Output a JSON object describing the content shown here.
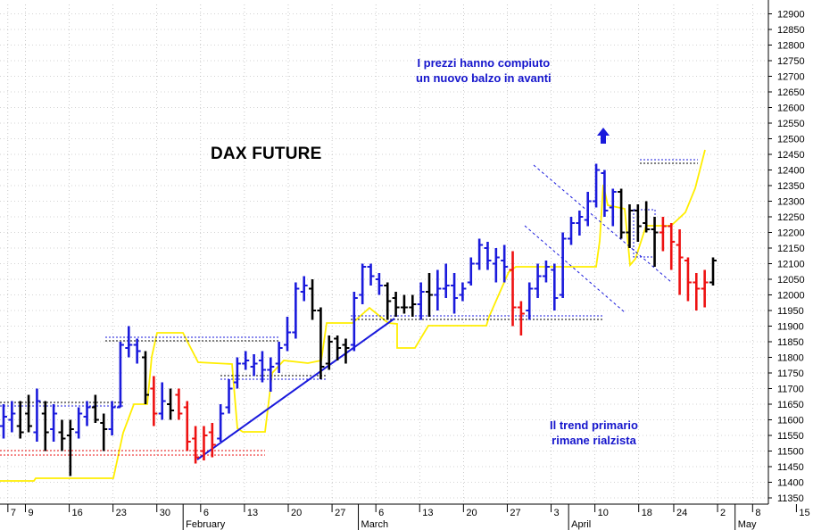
{
  "chart_data": {
    "type": "ohlc",
    "title": "DAX FUTURE",
    "annotations": [
      {
        "id": "top",
        "lines": [
          "I prezzi hanno compiuto",
          "un nuovo balzo in avanti"
        ]
      },
      {
        "id": "bottom",
        "lines": [
          "Il trend primario",
          "rimane rialzista"
        ]
      }
    ],
    "y_axis": {
      "position": "right",
      "range": [
        11330,
        12930
      ],
      "ticks": [
        11350,
        11400,
        11450,
        11500,
        11550,
        11600,
        11650,
        11700,
        11750,
        11800,
        11850,
        11900,
        11950,
        12000,
        12050,
        12100,
        12150,
        12200,
        12250,
        12300,
        12350,
        12400,
        12450,
        12500,
        12550,
        12600,
        12650,
        12700,
        12750,
        12800,
        12850,
        12900
      ]
    },
    "x_axis": {
      "range": [
        -1.2,
        86.5
      ],
      "ticks": [
        {
          "label": "7",
          "x": -0.3
        },
        {
          "label": "9",
          "x": 1.7
        },
        {
          "label": "16",
          "x": 6.7
        },
        {
          "label": "23",
          "x": 11.7
        },
        {
          "label": "30",
          "x": 16.7
        },
        {
          "label": "6",
          "x": 21.7
        },
        {
          "label": "13",
          "x": 26.7
        },
        {
          "label": "20",
          "x": 31.7
        },
        {
          "label": "27",
          "x": 36.7
        },
        {
          "label": "6",
          "x": 41.7
        },
        {
          "label": "13",
          "x": 46.7
        },
        {
          "label": "20",
          "x": 51.7
        },
        {
          "label": "27",
          "x": 56.7
        },
        {
          "label": "3",
          "x": 61.7
        },
        {
          "label": "10",
          "x": 66.7
        },
        {
          "label": "18",
          "x": 71.7
        },
        {
          "label": "24",
          "x": 75.7
        },
        {
          "label": "2",
          "x": 80.7
        },
        {
          "label": "8",
          "x": 84.7
        },
        {
          "label": "15",
          "x": 89.7
        }
      ],
      "months": [
        {
          "label": "February",
          "x": 19.7
        },
        {
          "label": "March",
          "x": 39.7
        },
        {
          "label": "April",
          "x": 63.7
        },
        {
          "label": "May",
          "x": 82.7
        }
      ]
    },
    "series": [
      {
        "bars": [
          {
            "x": 0,
            "o": 11580,
            "h": 11650,
            "l": 11540,
            "c": 11610,
            "color": "blue"
          },
          {
            "x": 1,
            "o": 11600,
            "h": 11660,
            "l": 11560,
            "c": 11620,
            "color": "blue"
          },
          {
            "x": 2,
            "o": 11580,
            "h": 11660,
            "l": 11540,
            "c": 11560,
            "color": "black"
          },
          {
            "x": 3,
            "o": 11620,
            "h": 11680,
            "l": 11560,
            "c": 11580,
            "color": "black"
          },
          {
            "x": 4,
            "o": 11560,
            "h": 11700,
            "l": 11530,
            "c": 11660,
            "color": "blue"
          },
          {
            "x": 5,
            "o": 11620,
            "h": 11660,
            "l": 11500,
            "c": 11560,
            "color": "black"
          },
          {
            "x": 6,
            "o": 11570,
            "h": 11650,
            "l": 11530,
            "c": 11620,
            "color": "blue"
          },
          {
            "x": 7,
            "o": 11560,
            "h": 11600,
            "l": 11500,
            "c": 11540,
            "color": "black"
          },
          {
            "x": 8,
            "o": 11550,
            "h": 11600,
            "l": 11420,
            "c": 11570,
            "color": "black"
          },
          {
            "x": 9,
            "o": 11560,
            "h": 11640,
            "l": 11540,
            "c": 11620,
            "color": "blue"
          },
          {
            "x": 10,
            "o": 11610,
            "h": 11660,
            "l": 11580,
            "c": 11640,
            "color": "blue"
          },
          {
            "x": 11,
            "o": 11640,
            "h": 11680,
            "l": 11590,
            "c": 11600,
            "color": "black"
          },
          {
            "x": 12,
            "o": 11590,
            "h": 11620,
            "l": 11500,
            "c": 11570,
            "color": "black"
          },
          {
            "x": 13,
            "o": 11570,
            "h": 11660,
            "l": 11550,
            "c": 11640,
            "color": "blue"
          },
          {
            "x": 14,
            "o": 11640,
            "h": 11850,
            "l": 11640,
            "c": 11840,
            "color": "blue"
          },
          {
            "x": 15,
            "o": 11830,
            "h": 11900,
            "l": 11800,
            "c": 11840,
            "color": "blue"
          },
          {
            "x": 16,
            "o": 11840,
            "h": 11860,
            "l": 11780,
            "c": 11820,
            "color": "blue"
          },
          {
            "x": 17,
            "o": 11800,
            "h": 11820,
            "l": 11650,
            "c": 11680,
            "color": "black"
          },
          {
            "x": 18,
            "o": 11700,
            "h": 11740,
            "l": 11580,
            "c": 11620,
            "color": "red"
          },
          {
            "x": 19,
            "o": 11620,
            "h": 11720,
            "l": 11600,
            "c": 11660,
            "color": "blue"
          },
          {
            "x": 20,
            "o": 11650,
            "h": 11700,
            "l": 11600,
            "c": 11630,
            "color": "black"
          },
          {
            "x": 21,
            "o": 11680,
            "h": 11700,
            "l": 11600,
            "c": 11620,
            "color": "red"
          },
          {
            "x": 22,
            "o": 11640,
            "h": 11660,
            "l": 11500,
            "c": 11530,
            "color": "red"
          },
          {
            "x": 23,
            "o": 11540,
            "h": 11580,
            "l": 11460,
            "c": 11480,
            "color": "red"
          },
          {
            "x": 24,
            "o": 11500,
            "h": 11580,
            "l": 11470,
            "c": 11550,
            "color": "red"
          },
          {
            "x": 25,
            "o": 11560,
            "h": 11590,
            "l": 11480,
            "c": 11520,
            "color": "red"
          },
          {
            "x": 26,
            "o": 11540,
            "h": 11650,
            "l": 11530,
            "c": 11620,
            "color": "blue"
          },
          {
            "x": 27,
            "o": 11640,
            "h": 11730,
            "l": 11620,
            "c": 11700,
            "color": "blue"
          },
          {
            "x": 28,
            "o": 11720,
            "h": 11800,
            "l": 11700,
            "c": 11780,
            "color": "blue"
          },
          {
            "x": 29,
            "o": 11780,
            "h": 11820,
            "l": 11760,
            "c": 11790,
            "color": "blue"
          },
          {
            "x": 30,
            "o": 11770,
            "h": 11810,
            "l": 11740,
            "c": 11780,
            "color": "blue"
          },
          {
            "x": 31,
            "o": 11790,
            "h": 11820,
            "l": 11720,
            "c": 11760,
            "color": "blue"
          },
          {
            "x": 32,
            "o": 11760,
            "h": 11800,
            "l": 11690,
            "c": 11770,
            "color": "blue"
          },
          {
            "x": 33,
            "o": 11780,
            "h": 11850,
            "l": 11750,
            "c": 11830,
            "color": "blue"
          },
          {
            "x": 34,
            "o": 11840,
            "h": 11930,
            "l": 11820,
            "c": 11880,
            "color": "blue"
          },
          {
            "x": 35,
            "o": 11880,
            "h": 12040,
            "l": 11860,
            "c": 12020,
            "color": "blue"
          },
          {
            "x": 36,
            "o": 12010,
            "h": 12060,
            "l": 11980,
            "c": 12030,
            "color": "blue"
          },
          {
            "x": 37,
            "o": 12020,
            "h": 12050,
            "l": 11920,
            "c": 11950,
            "color": "black"
          },
          {
            "x": 38,
            "o": 11950,
            "h": 11960,
            "l": 11730,
            "c": 11770,
            "color": "black"
          },
          {
            "x": 39,
            "o": 11780,
            "h": 11870,
            "l": 11760,
            "c": 11850,
            "color": "black"
          },
          {
            "x": 40,
            "o": 11860,
            "h": 11870,
            "l": 11790,
            "c": 11830,
            "color": "black"
          },
          {
            "x": 41,
            "o": 11840,
            "h": 11860,
            "l": 11780,
            "c": 11830,
            "color": "black"
          },
          {
            "x": 42,
            "o": 11840,
            "h": 12010,
            "l": 11820,
            "c": 11990,
            "color": "blue"
          },
          {
            "x": 43,
            "o": 12000,
            "h": 12100,
            "l": 11970,
            "c": 12090,
            "color": "blue"
          },
          {
            "x": 44,
            "o": 12090,
            "h": 12100,
            "l": 12030,
            "c": 12060,
            "color": "blue"
          },
          {
            "x": 45,
            "o": 12050,
            "h": 12070,
            "l": 12000,
            "c": 12030,
            "color": "blue"
          },
          {
            "x": 46,
            "o": 12030,
            "h": 12040,
            "l": 11920,
            "c": 11980,
            "color": "black"
          },
          {
            "x": 47,
            "o": 11990,
            "h": 12010,
            "l": 11930,
            "c": 11960,
            "color": "black"
          },
          {
            "x": 48,
            "o": 11960,
            "h": 12000,
            "l": 11940,
            "c": 11960,
            "color": "black"
          },
          {
            "x": 49,
            "o": 11960,
            "h": 12000,
            "l": 11930,
            "c": 11970,
            "color": "black"
          },
          {
            "x": 50,
            "o": 11970,
            "h": 12040,
            "l": 11920,
            "c": 12010,
            "color": "blue"
          },
          {
            "x": 51,
            "o": 12010,
            "h": 12070,
            "l": 11930,
            "c": 12000,
            "color": "black"
          },
          {
            "x": 52,
            "o": 12000,
            "h": 12080,
            "l": 11950,
            "c": 12020,
            "color": "blue"
          },
          {
            "x": 53,
            "o": 12020,
            "h": 12100,
            "l": 11990,
            "c": 12030,
            "color": "blue"
          },
          {
            "x": 54,
            "o": 12030,
            "h": 12070,
            "l": 11940,
            "c": 11990,
            "color": "blue"
          },
          {
            "x": 55,
            "o": 12000,
            "h": 12040,
            "l": 11980,
            "c": 12020,
            "color": "blue"
          },
          {
            "x": 56,
            "o": 12040,
            "h": 12120,
            "l": 12030,
            "c": 12100,
            "color": "blue"
          },
          {
            "x": 57,
            "o": 12100,
            "h": 12180,
            "l": 12080,
            "c": 12160,
            "color": "blue"
          },
          {
            "x": 58,
            "o": 12150,
            "h": 12170,
            "l": 12080,
            "c": 12110,
            "color": "blue"
          },
          {
            "x": 59,
            "o": 12100,
            "h": 12150,
            "l": 12040,
            "c": 12120,
            "color": "blue"
          },
          {
            "x": 60,
            "o": 12110,
            "h": 12160,
            "l": 12040,
            "c": 12090,
            "color": "blue"
          },
          {
            "x": 61,
            "o": 12080,
            "h": 12140,
            "l": 11900,
            "c": 11960,
            "color": "red"
          },
          {
            "x": 62,
            "o": 11960,
            "h": 11980,
            "l": 11870,
            "c": 11940,
            "color": "red"
          },
          {
            "x": 63,
            "o": 11950,
            "h": 12040,
            "l": 11920,
            "c": 12020,
            "color": "blue"
          },
          {
            "x": 64,
            "o": 12020,
            "h": 12100,
            "l": 11990,
            "c": 12060,
            "color": "blue"
          },
          {
            "x": 65,
            "o": 12060,
            "h": 12110,
            "l": 12040,
            "c": 12090,
            "color": "blue"
          },
          {
            "x": 66,
            "o": 12080,
            "h": 12100,
            "l": 11950,
            "c": 11990,
            "color": "blue"
          },
          {
            "x": 67,
            "o": 12000,
            "h": 12200,
            "l": 11990,
            "c": 12180,
            "color": "blue"
          },
          {
            "x": 68,
            "o": 12180,
            "h": 12250,
            "l": 12160,
            "c": 12230,
            "color": "blue"
          },
          {
            "x": 69,
            "o": 12230,
            "h": 12270,
            "l": 12190,
            "c": 12250,
            "color": "blue"
          },
          {
            "x": 70,
            "o": 12240,
            "h": 12330,
            "l": 12220,
            "c": 12300,
            "color": "blue"
          },
          {
            "x": 71,
            "o": 12300,
            "h": 12420,
            "l": 12280,
            "c": 12400,
            "color": "blue"
          },
          {
            "x": 72,
            "o": 12390,
            "h": 12400,
            "l": 12250,
            "c": 12270,
            "color": "blue"
          },
          {
            "x": 73,
            "o": 12280,
            "h": 12340,
            "l": 12220,
            "c": 12330,
            "color": "blue"
          },
          {
            "x": 74,
            "o": 12330,
            "h": 12340,
            "l": 12180,
            "c": 12200,
            "color": "black"
          },
          {
            "x": 75,
            "o": 12200,
            "h": 12290,
            "l": 12150,
            "c": 12270,
            "color": "black"
          },
          {
            "x": 76,
            "o": 12270,
            "h": 12290,
            "l": 12170,
            "c": 12220,
            "color": "black"
          },
          {
            "x": 77,
            "o": 12230,
            "h": 12300,
            "l": 12200,
            "c": 12210,
            "color": "black"
          },
          {
            "x": 78,
            "o": 12210,
            "h": 12250,
            "l": 12090,
            "c": 12200,
            "color": "black"
          },
          {
            "x": 79,
            "o": 12200,
            "h": 12250,
            "l": 12140,
            "c": 12220,
            "color": "red"
          },
          {
            "x": 80,
            "o": 12220,
            "h": 12230,
            "l": 12080,
            "c": 12170,
            "color": "red"
          },
          {
            "x": 81,
            "o": 12160,
            "h": 12210,
            "l": 12000,
            "c": 12120,
            "color": "red"
          },
          {
            "x": 82,
            "o": 12110,
            "h": 12120,
            "l": 11980,
            "c": 12040,
            "color": "red"
          },
          {
            "x": 83,
            "o": 12040,
            "h": 12070,
            "l": 11950,
            "c": 12020,
            "color": "red"
          },
          {
            "x": 84,
            "o": 12020,
            "h": 12080,
            "l": 11960,
            "c": 12040,
            "color": "red"
          },
          {
            "x": 85,
            "o": 12040,
            "h": 12120,
            "l": 12030,
            "c": 12110,
            "color": "black"
          }
        ]
      }
    ],
    "colors": {
      "blue": "#1a1adc",
      "black": "#000000",
      "red": "#ee1111",
      "envelope": "#ffee00"
    }
  }
}
